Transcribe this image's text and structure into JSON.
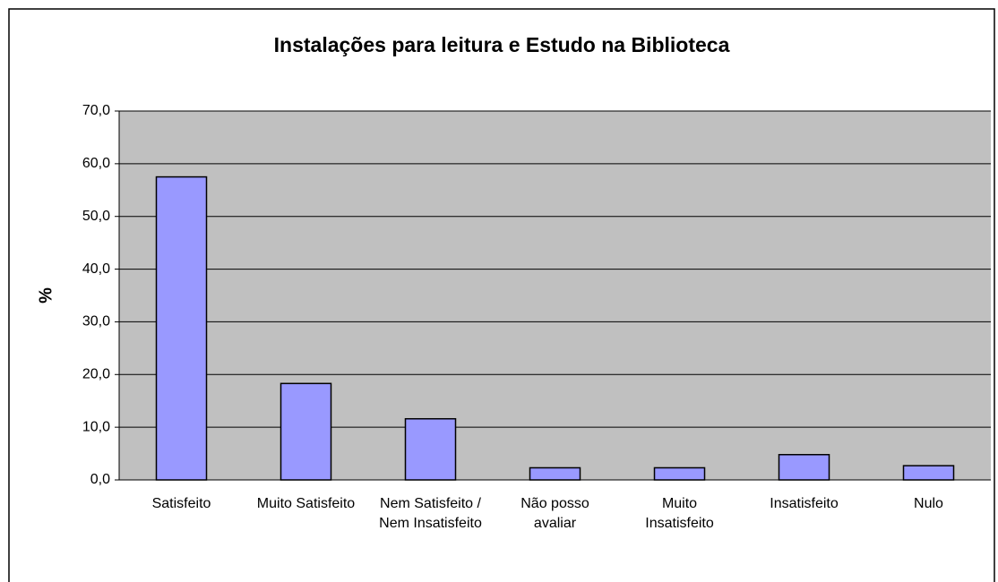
{
  "chart_data": {
    "type": "bar",
    "title": "Instalações para leitura e Estudo na Biblioteca",
    "y_label": "%",
    "categories": [
      "Satisfeito",
      "Muito Satisfeito",
      "Nem Satisfeito / Nem Insatisfeito",
      "Não posso avaliar",
      "Muito Insatisfeito",
      "Insatisfeito",
      "Nulo"
    ],
    "values": [
      57.5,
      18.3,
      11.6,
      2.3,
      2.3,
      4.8,
      2.7
    ],
    "color": "#9999ff",
    "ylim": [
      0,
      70
    ],
    "yticks": [
      {
        "value": 0,
        "label": "0,0"
      },
      {
        "value": 10,
        "label": "10,0"
      },
      {
        "value": 20,
        "label": "20,0"
      },
      {
        "value": 30,
        "label": "30,0"
      },
      {
        "value": 40,
        "label": "40,0"
      },
      {
        "value": 50,
        "label": "50,0"
      },
      {
        "value": 60,
        "label": "60,0"
      },
      {
        "value": 70,
        "label": "70,0"
      }
    ],
    "grid": true
  }
}
